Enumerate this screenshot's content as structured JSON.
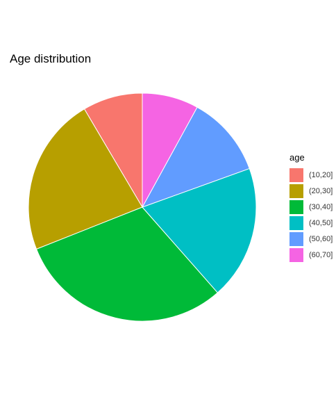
{
  "chart_data": {
    "type": "pie",
    "title": "Age distribution",
    "legend_title": "age",
    "legend_position": "right",
    "categories": [
      "(10,20]",
      "(20,30]",
      "(30,40]",
      "(40,50]",
      "(50,60]",
      "(60,70]"
    ],
    "values": [
      8.5,
      22.5,
      30.5,
      19,
      11.5,
      8
    ],
    "colors": [
      "#F8766D",
      "#B79F00",
      "#00BA38",
      "#00BFC4",
      "#619CFF",
      "#F564E3"
    ]
  }
}
